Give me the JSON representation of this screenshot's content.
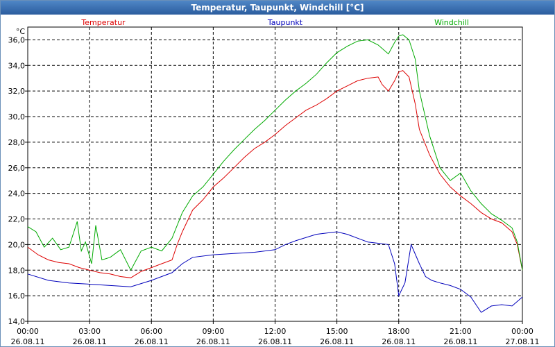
{
  "window": {
    "title": "Temperatur, Taupunkt, Windchill [°C]"
  },
  "chart_data": {
    "type": "line",
    "title": "Temperatur, Taupunkt, Windchill [°C]",
    "ylabel": "°C",
    "xlabel": "",
    "ylim": [
      14,
      37
    ],
    "xlim": [
      0,
      24
    ],
    "grid": true,
    "y_ticks": [
      "14,0",
      "16,0",
      "18,0",
      "20,0",
      "22,0",
      "24,0",
      "26,0",
      "28,0",
      "30,0",
      "32,0",
      "34,0",
      "36,0"
    ],
    "y_tick_values": [
      14,
      16,
      18,
      20,
      22,
      24,
      26,
      28,
      30,
      32,
      34,
      36
    ],
    "x_ticks": [
      {
        "x": 0,
        "time": "00:00",
        "date": "26.08.11"
      },
      {
        "x": 3,
        "time": "03:00",
        "date": "26.08.11"
      },
      {
        "x": 6,
        "time": "06:00",
        "date": "26.08.11"
      },
      {
        "x": 9,
        "time": "09:00",
        "date": "26.08.11"
      },
      {
        "x": 12,
        "time": "12:00",
        "date": "26.08.11"
      },
      {
        "x": 15,
        "time": "15:00",
        "date": "26.08.11"
      },
      {
        "x": 18,
        "time": "18:00",
        "date": "26.08.11"
      },
      {
        "x": 21,
        "time": "21:00",
        "date": "26.08.11"
      },
      {
        "x": 24,
        "time": "00:00",
        "date": "27.08.11"
      }
    ],
    "series": [
      {
        "name": "Temperatur",
        "color": "#dd0000",
        "x": [
          0,
          0.5,
          1,
          1.5,
          2,
          2.5,
          3,
          3.5,
          4,
          4.5,
          5,
          5.5,
          6,
          6.5,
          7,
          7.25,
          7.5,
          8,
          8.5,
          9,
          9.5,
          10,
          10.5,
          11,
          11.5,
          12,
          12.5,
          13,
          13.5,
          14,
          14.5,
          15,
          15.5,
          16,
          16.5,
          17,
          17.2,
          17.5,
          17.8,
          18,
          18.2,
          18.5,
          18.8,
          19,
          19.5,
          20,
          20.5,
          21,
          21.5,
          22,
          22.5,
          23,
          23.5,
          23.75,
          24
        ],
        "y": [
          19.8,
          19.2,
          18.8,
          18.6,
          18.5,
          18.2,
          18.0,
          17.8,
          17.7,
          17.5,
          17.4,
          17.9,
          18.2,
          18.5,
          18.8,
          20.0,
          21.0,
          22.7,
          23.5,
          24.5,
          25.2,
          26.0,
          26.8,
          27.5,
          28.0,
          28.6,
          29.3,
          29.9,
          30.5,
          30.9,
          31.4,
          32.0,
          32.4,
          32.8,
          33.0,
          33.1,
          32.5,
          32.0,
          32.8,
          33.5,
          33.6,
          33.1,
          31.0,
          29.0,
          27.0,
          25.5,
          24.5,
          23.8,
          23.2,
          22.5,
          22.0,
          21.7,
          21.0,
          20.0,
          18.0
        ]
      },
      {
        "name": "Taupunkt",
        "color": "#0000bb",
        "x": [
          0,
          1,
          2,
          3,
          4,
          5,
          6,
          7,
          7.5,
          8,
          9,
          10,
          11,
          12,
          12.5,
          13,
          14,
          15,
          15.5,
          16,
          16.5,
          17,
          17.5,
          17.8,
          18,
          18.3,
          18.6,
          19,
          19.3,
          19.6,
          20,
          20.5,
          21,
          21.5,
          22,
          22.5,
          23,
          23.5,
          24
        ],
        "y": [
          17.7,
          17.2,
          17.0,
          16.9,
          16.8,
          16.7,
          17.2,
          17.8,
          18.5,
          19.0,
          19.2,
          19.3,
          19.4,
          19.6,
          20.0,
          20.3,
          20.8,
          21.0,
          20.8,
          20.5,
          20.2,
          20.1,
          20.0,
          18.5,
          16.0,
          17.0,
          20.0,
          18.5,
          17.5,
          17.2,
          17.0,
          16.8,
          16.5,
          15.9,
          14.7,
          15.2,
          15.3,
          15.2,
          15.9
        ]
      },
      {
        "name": "Windchill",
        "color": "#00aa00",
        "x": [
          0,
          0.4,
          0.8,
          1.2,
          1.6,
          2,
          2.4,
          2.6,
          2.8,
          3.1,
          3.3,
          3.6,
          4,
          4.5,
          5,
          5.5,
          6,
          6.5,
          7,
          7.25,
          7.5,
          8,
          8.5,
          9,
          9.5,
          10,
          10.5,
          11,
          11.5,
          12,
          12.5,
          13,
          13.5,
          14,
          14.5,
          15,
          15.5,
          16,
          16.5,
          17,
          17.5,
          17.8,
          18,
          18.2,
          18.5,
          18.8,
          19,
          19.5,
          20,
          20.5,
          21,
          21.5,
          22,
          22.5,
          23,
          23.5,
          23.75,
          24
        ],
        "y": [
          21.4,
          21.0,
          19.8,
          20.5,
          19.6,
          19.8,
          21.8,
          19.5,
          20.2,
          18.5,
          21.5,
          18.8,
          19.0,
          19.6,
          18.0,
          19.5,
          19.8,
          19.5,
          20.5,
          21.5,
          22.5,
          23.8,
          24.5,
          25.5,
          26.5,
          27.4,
          28.2,
          29.0,
          29.7,
          30.5,
          31.3,
          32.0,
          32.6,
          33.3,
          34.2,
          35.0,
          35.5,
          35.9,
          36.0,
          35.6,
          34.9,
          35.8,
          36.3,
          36.4,
          36.0,
          34.5,
          32.0,
          28.5,
          26.0,
          25.0,
          25.6,
          24.2,
          23.2,
          22.4,
          21.9,
          21.3,
          20.2,
          18.0
        ]
      }
    ]
  }
}
